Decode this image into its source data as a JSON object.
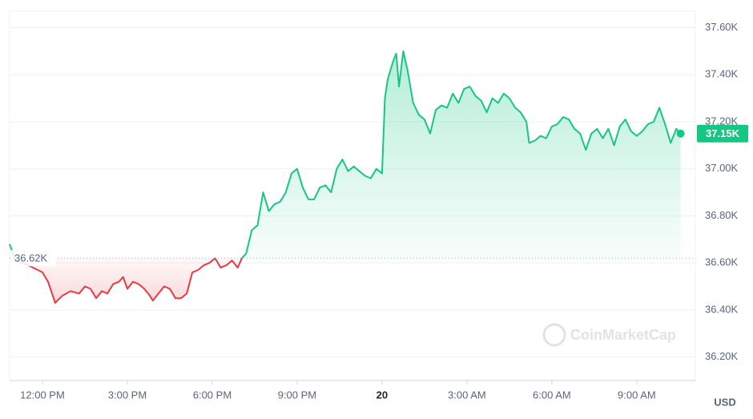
{
  "chart_data": {
    "type": "line",
    "x": [
      -1.16,
      -0.95,
      -0.5,
      0,
      0.2,
      0.45,
      0.7,
      1.0,
      1.3,
      1.5,
      1.7,
      1.9,
      2.1,
      2.3,
      2.5,
      2.7,
      2.85,
      3.0,
      3.2,
      3.4,
      3.6,
      3.8,
      3.9,
      4.1,
      4.3,
      4.5,
      4.7,
      4.9,
      5.1,
      5.3,
      5.5,
      5.7,
      5.9,
      6.1,
      6.3,
      6.5,
      6.7,
      6.9,
      7.05,
      7.2,
      7.4,
      7.6,
      7.8,
      8.0,
      8.2,
      8.4,
      8.6,
      8.8,
      9.0,
      9.2,
      9.4,
      9.6,
      9.8,
      10.0,
      10.2,
      10.4,
      10.6,
      10.8,
      11.0,
      11.2,
      11.4,
      11.6,
      11.8,
      12.0,
      12.1,
      12.2,
      12.4,
      12.5,
      12.6,
      12.75,
      12.9,
      13.1,
      13.3,
      13.5,
      13.7,
      13.9,
      14.1,
      14.3,
      14.5,
      14.7,
      14.9,
      15.1,
      15.3,
      15.5,
      15.7,
      15.9,
      16.1,
      16.3,
      16.5,
      16.7,
      16.9,
      17.1,
      17.2,
      17.4,
      17.6,
      17.8,
      18.0,
      18.2,
      18.4,
      18.6,
      18.8,
      19.0,
      19.2,
      19.4,
      19.6,
      19.8,
      20.0,
      20.2,
      20.4,
      20.6,
      20.8,
      21.0,
      21.2,
      21.4,
      21.6,
      21.8,
      22.0,
      22.2,
      22.4,
      22.55
    ],
    "values": [
      36680,
      36610,
      36590,
      36560,
      36520,
      36430,
      36460,
      36480,
      36470,
      36500,
      36490,
      36450,
      36480,
      36470,
      36510,
      36520,
      36540,
      36490,
      36520,
      36510,
      36490,
      36460,
      36440,
      36470,
      36500,
      36490,
      36450,
      36450,
      36470,
      36560,
      36570,
      36590,
      36600,
      36620,
      36580,
      36590,
      36610,
      36580,
      36620,
      36640,
      36740,
      36760,
      36900,
      36820,
      36850,
      36860,
      36900,
      36980,
      37000,
      36920,
      36870,
      36870,
      36920,
      36930,
      36900,
      37000,
      37040,
      36990,
      37010,
      36990,
      36970,
      36960,
      37000,
      36980,
      37300,
      37380,
      37460,
      37490,
      37350,
      37500,
      37420,
      37280,
      37230,
      37210,
      37150,
      37250,
      37270,
      37260,
      37320,
      37280,
      37340,
      37350,
      37310,
      37290,
      37240,
      37300,
      37280,
      37320,
      37300,
      37260,
      37240,
      37200,
      37110,
      37120,
      37140,
      37130,
      37180,
      37190,
      37220,
      37210,
      37170,
      37150,
      37080,
      37150,
      37170,
      37130,
      37170,
      37100,
      37180,
      37210,
      37160,
      37140,
      37160,
      37190,
      37200,
      37260,
      37190,
      37110,
      37170,
      37150
    ],
    "up_color": "#16c784",
    "down_color": "#ea3943",
    "baseline": 36620,
    "baseline_label": "36.62K",
    "last_price_label": "37.15K",
    "xlim": [
      -1.16,
      23.07
    ],
    "xticks": [
      {
        "value": 0,
        "label": "12:00 PM"
      },
      {
        "value": 3,
        "label": "3:00 PM"
      },
      {
        "value": 6,
        "label": "6:00 PM"
      },
      {
        "value": 9,
        "label": "9:00 PM"
      },
      {
        "value": 12,
        "label": "20"
      },
      {
        "value": 15,
        "label": "3:00 AM"
      },
      {
        "value": 18,
        "label": "6:00 AM"
      },
      {
        "value": 21,
        "label": "9:00 AM"
      }
    ],
    "ylim": [
      36100,
      37670
    ],
    "yticks": [
      {
        "value": 36200,
        "label": "36.20K"
      },
      {
        "value": 36400,
        "label": "36.40K"
      },
      {
        "value": 36600,
        "label": "36.60K"
      },
      {
        "value": 36800,
        "label": "36.80K"
      },
      {
        "value": 37000,
        "label": "37.00K"
      },
      {
        "value": 37200,
        "label": "37.20K"
      },
      {
        "value": 37400,
        "label": "37.40K"
      },
      {
        "value": 37600,
        "label": "37.60K"
      }
    ],
    "grid": true,
    "currency": "USD",
    "watermark": "CoinMarketCap"
  }
}
